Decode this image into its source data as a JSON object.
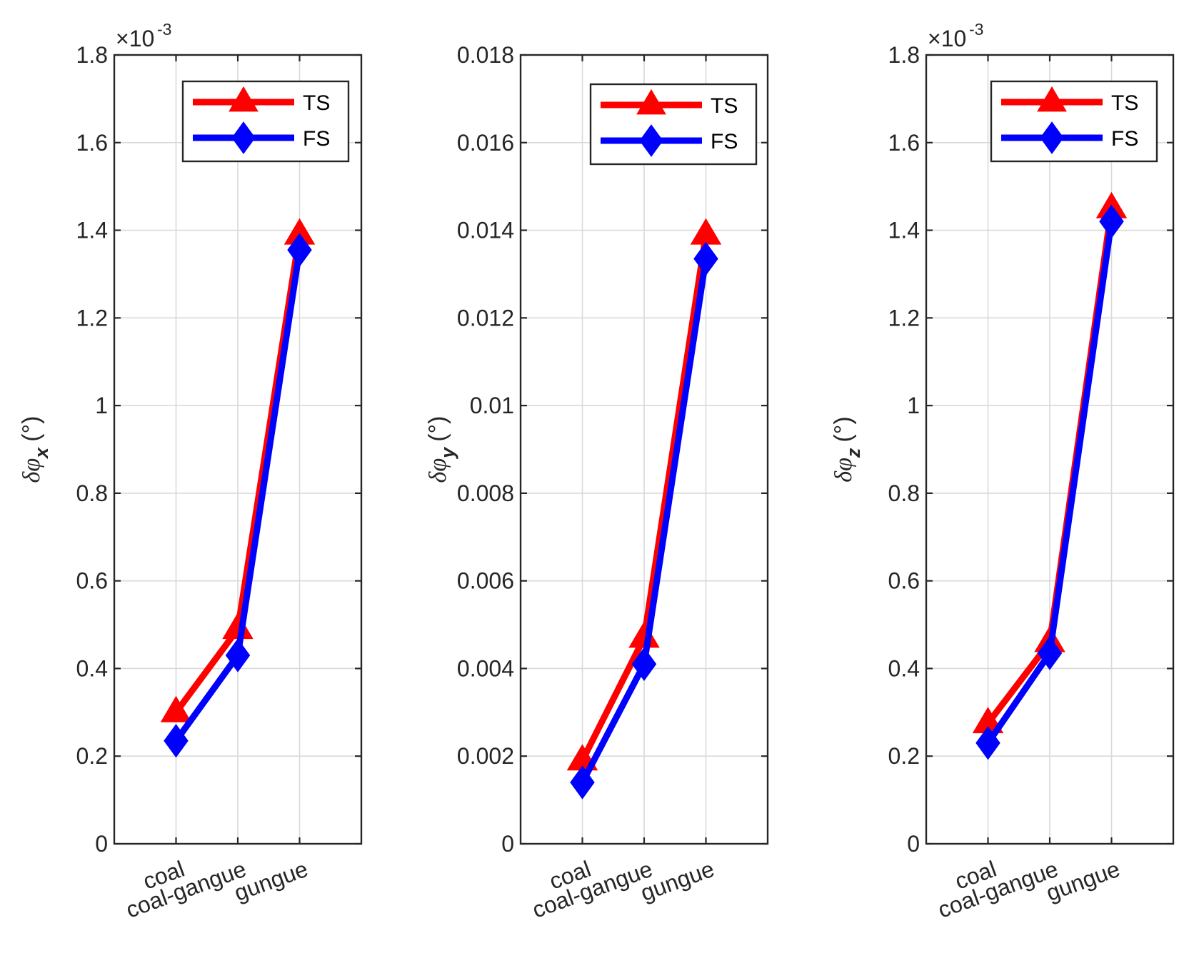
{
  "chart_data": [
    {
      "type": "line",
      "categories": [
        "coal",
        "coal-gangue",
        "gungue"
      ],
      "series": [
        {
          "name": "TS",
          "color": "#ff0000",
          "marker": "triangle",
          "values": [
            0.0003,
            0.00049,
            0.00139
          ]
        },
        {
          "name": "FS",
          "color": "#0000ff",
          "marker": "diamond",
          "values": [
            0.000235,
            0.00043,
            0.001355
          ]
        }
      ],
      "ylim": [
        0,
        0.0018
      ],
      "yticks": [
        0,
        0.0002,
        0.0004,
        0.0006,
        0.0008,
        0.001,
        0.0012,
        0.0014,
        0.0016,
        0.0018
      ],
      "ytick_labels": [
        "0",
        "0.2",
        "0.4",
        "0.6",
        "0.8",
        "1",
        "1.2",
        "1.4",
        "1.6",
        "1.8"
      ],
      "exponent_base": "×10",
      "exponent_power": "-3",
      "ylabel_symbol": "δφ",
      "ylabel_subscript": "x",
      "ylabel_unit": "(°)",
      "legend_position": "top-right",
      "grid": true
    },
    {
      "type": "line",
      "categories": [
        "coal",
        "coal-gangue",
        "gungue"
      ],
      "series": [
        {
          "name": "TS",
          "color": "#ff0000",
          "marker": "triangle",
          "values": [
            0.0019,
            0.0047,
            0.0139
          ]
        },
        {
          "name": "FS",
          "color": "#0000ff",
          "marker": "diamond",
          "values": [
            0.0014,
            0.0041,
            0.01335
          ]
        }
      ],
      "ylim": [
        0,
        0.018
      ],
      "yticks": [
        0,
        0.002,
        0.004,
        0.006,
        0.008,
        0.01,
        0.012,
        0.014,
        0.016,
        0.018
      ],
      "ytick_labels": [
        "0",
        "0.002",
        "0.004",
        "0.006",
        "0.008",
        "0.01",
        "0.012",
        "0.014",
        "0.016",
        "0.018"
      ],
      "exponent_base": "",
      "exponent_power": "",
      "ylabel_symbol": "δφ",
      "ylabel_subscript": "y",
      "ylabel_unit": "(°)",
      "legend_position": "top-right",
      "grid": true
    },
    {
      "type": "line",
      "categories": [
        "coal",
        "coal-gangue",
        "gungue"
      ],
      "series": [
        {
          "name": "TS",
          "color": "#ff0000",
          "marker": "triangle",
          "values": [
            0.000275,
            0.00046,
            0.00145
          ]
        },
        {
          "name": "FS",
          "color": "#0000ff",
          "marker": "diamond",
          "values": [
            0.00023,
            0.000435,
            0.00142
          ]
        }
      ],
      "ylim": [
        0,
        0.0018
      ],
      "yticks": [
        0,
        0.0002,
        0.0004,
        0.0006,
        0.0008,
        0.001,
        0.0012,
        0.0014,
        0.0016,
        0.0018
      ],
      "ytick_labels": [
        "0",
        "0.2",
        "0.4",
        "0.6",
        "0.8",
        "1",
        "1.2",
        "1.4",
        "1.6",
        "1.8"
      ],
      "exponent_base": "×10",
      "exponent_power": "-3",
      "ylabel_symbol": "δφ",
      "ylabel_subscript": "z",
      "ylabel_unit": "(°)",
      "legend_position": "top-right",
      "grid": true
    }
  ]
}
